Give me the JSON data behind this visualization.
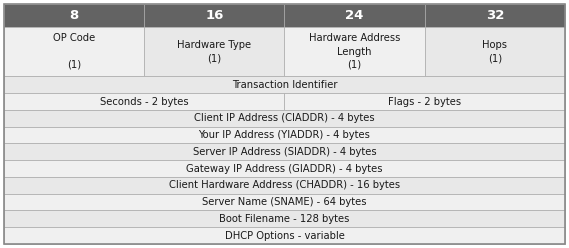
{
  "header_numbers": [
    "8",
    "16",
    "24",
    "32"
  ],
  "header_bg": "#636363",
  "header_fg": "#ffffff",
  "row1_cells": [
    {
      "text": "OP Code\n\n(1)"
    },
    {
      "text": "Hardware Type\n(1)"
    },
    {
      "text": "Hardware Address\nLength\n(1)"
    },
    {
      "text": "Hops\n(1)"
    }
  ],
  "full_rows": [
    {
      "text": "Transaction Identifier",
      "split": false,
      "bg": "#e8e8e8"
    },
    {
      "text": "Seconds - 2 bytes|Flags - 2 bytes",
      "split": true,
      "bg": "#f0f0f0"
    },
    {
      "text": "Client IP Address (CIADDR) - 4 bytes",
      "split": false,
      "bg": "#e8e8e8"
    },
    {
      "text": "Your IP Address (YIADDR) - 4 bytes",
      "split": false,
      "bg": "#f0f0f0"
    },
    {
      "text": "Server IP Address (SIADDR) - 4 bytes",
      "split": false,
      "bg": "#e8e8e8"
    },
    {
      "text": "Gateway IP Address (GIADDR) - 4 bytes",
      "split": false,
      "bg": "#f0f0f0"
    },
    {
      "text": "Client Hardware Address (CHADDR) - 16 bytes",
      "split": false,
      "bg": "#e8e8e8"
    },
    {
      "text": "Server Name (SNAME) - 64 bytes",
      "split": false,
      "bg": "#f0f0f0"
    },
    {
      "text": "Boot Filename - 128 bytes",
      "split": false,
      "bg": "#e8e8e8"
    },
    {
      "text": "DHCP Options - variable",
      "split": false,
      "bg": "#f0f0f0"
    }
  ],
  "border_color": "#aaaaaa",
  "outer_border_color": "#888888",
  "text_color": "#1a1a1a",
  "row1_bg": [
    "#f0f0f0",
    "#e8e8e8",
    "#f0f0f0",
    "#e8e8e8"
  ],
  "fig_width": 5.69,
  "fig_height": 2.48,
  "dpi": 100,
  "font_size": 7.2,
  "header_font_size": 9.5
}
